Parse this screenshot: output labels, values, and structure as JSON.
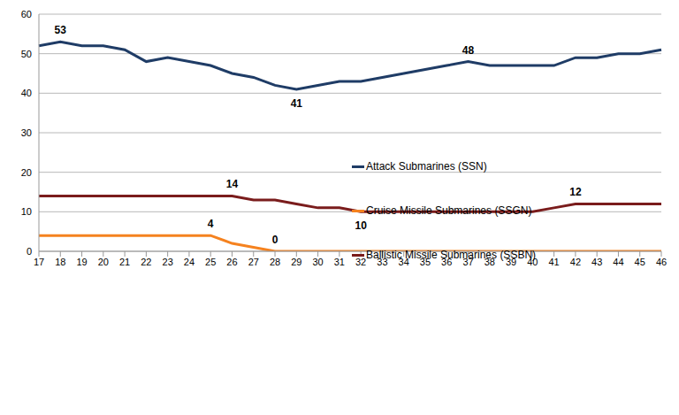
{
  "chart_data": {
    "type": "line",
    "categories": [
      "17",
      "18",
      "19",
      "20",
      "21",
      "22",
      "23",
      "24",
      "25",
      "26",
      "27",
      "28",
      "29",
      "30",
      "31",
      "32",
      "33",
      "34",
      "35",
      "36",
      "37",
      "38",
      "39",
      "40",
      "41",
      "42",
      "43",
      "44",
      "45",
      "46"
    ],
    "series": [
      {
        "name": "Attack Submarines (SSN)",
        "color": "#1f3c66",
        "values": [
          52,
          53,
          52,
          52,
          51,
          48,
          49,
          48,
          47,
          45,
          44,
          42,
          41,
          42,
          43,
          43,
          44,
          45,
          46,
          47,
          48,
          47,
          47,
          47,
          47,
          49,
          49,
          50,
          50,
          51
        ],
        "value_labels": [
          null,
          "53",
          null,
          null,
          null,
          null,
          null,
          null,
          null,
          null,
          null,
          null,
          "41",
          null,
          null,
          null,
          null,
          null,
          null,
          null,
          "48",
          null,
          null,
          null,
          null,
          null,
          null,
          null,
          null,
          null
        ]
      },
      {
        "name": "Cruise Missile Submarines (SSGN)",
        "color": "#f5821f",
        "values": [
          4,
          4,
          4,
          4,
          4,
          4,
          4,
          4,
          4,
          2,
          1,
          0,
          0,
          0,
          0,
          0,
          0,
          0,
          0,
          0,
          0,
          0,
          0,
          0,
          0,
          0,
          0,
          0,
          0,
          0
        ],
        "value_labels": [
          null,
          null,
          null,
          null,
          null,
          null,
          null,
          null,
          "4",
          null,
          null,
          "0",
          null,
          null,
          null,
          null,
          null,
          null,
          null,
          null,
          null,
          null,
          null,
          null,
          null,
          null,
          null,
          null,
          null,
          null
        ]
      },
      {
        "name": "Ballistic Missile Submarines (SSBN)",
        "color": "#7a1c1c",
        "values": [
          14,
          14,
          14,
          14,
          14,
          14,
          14,
          14,
          14,
          14,
          13,
          13,
          12,
          11,
          11,
          10,
          10,
          10,
          10,
          10,
          10,
          10,
          10,
          10,
          11,
          12,
          12,
          12,
          12,
          12
        ],
        "value_labels": [
          null,
          null,
          null,
          null,
          null,
          null,
          null,
          null,
          null,
          "14",
          null,
          null,
          null,
          null,
          null,
          "10",
          null,
          null,
          null,
          null,
          null,
          null,
          null,
          null,
          null,
          "12",
          null,
          null,
          null,
          null
        ]
      }
    ],
    "ylim": [
      0,
      60
    ],
    "yticks": [
      0,
      10,
      20,
      30,
      40,
      50,
      60
    ],
    "grid": true,
    "legend": "right"
  }
}
